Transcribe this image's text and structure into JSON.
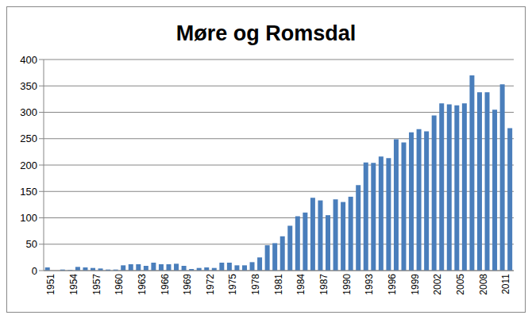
{
  "chart_data": {
    "type": "bar",
    "title": "Møre og Romsdal",
    "categories": [
      "1951",
      null,
      null,
      "1954",
      null,
      null,
      "1957",
      null,
      null,
      "1960",
      null,
      null,
      "1963",
      null,
      null,
      "1966",
      null,
      null,
      "1969",
      null,
      null,
      "1972",
      null,
      null,
      "1975",
      null,
      null,
      "1978",
      null,
      null,
      "1981",
      null,
      null,
      "1984",
      null,
      null,
      "1987",
      null,
      null,
      "1990",
      null,
      null,
      "1993",
      null,
      null,
      "1996",
      null,
      null,
      "1999",
      null,
      null,
      "2002",
      null,
      null,
      "2005",
      null,
      null,
      "2008",
      null,
      null,
      "2011",
      null
    ],
    "values": [
      6,
      0,
      2,
      1,
      7,
      6,
      5,
      4,
      2,
      2,
      10,
      12,
      12,
      9,
      15,
      12,
      12,
      13,
      9,
      3,
      5,
      6,
      5,
      15,
      15,
      10,
      10,
      16,
      25,
      48,
      52,
      65,
      85,
      103,
      110,
      138,
      133,
      105,
      135,
      130,
      140,
      162,
      205,
      204,
      216,
      213,
      249,
      243,
      262,
      268,
      264,
      294,
      317,
      315,
      313,
      317,
      370,
      338,
      338,
      305,
      353,
      270
    ],
    "color": "#4a7ebb",
    "ylim": [
      0,
      400
    ],
    "yticks": [
      0,
      50,
      100,
      150,
      200,
      250,
      300,
      350,
      400
    ],
    "grid": true
  }
}
